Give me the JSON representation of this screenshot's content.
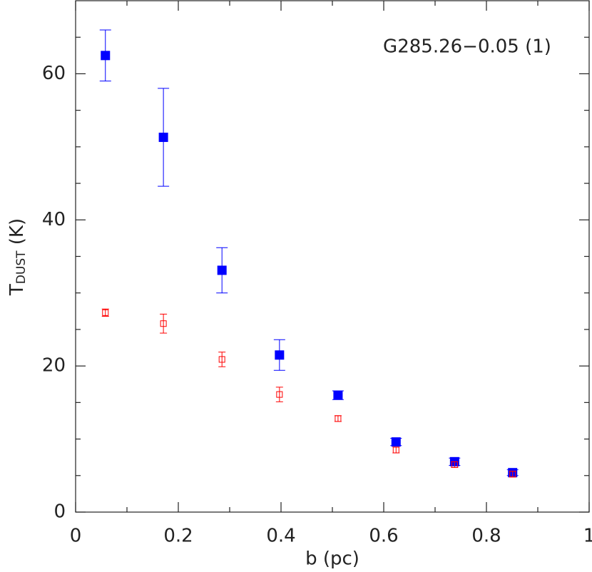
{
  "chart_data": {
    "type": "scatter",
    "xlabel": "b (pc)",
    "ylabel": "T",
    "ylabel_subscript": "DUST",
    "ylabel_suffix": "(K)",
    "annotation": "G285.26−0.05 (1)",
    "xlim": [
      0,
      1
    ],
    "xticks": [
      0,
      0.2,
      0.4,
      0.6,
      0.8,
      1
    ],
    "xminorticks": [
      0.1,
      0.3,
      0.5,
      0.7,
      0.9
    ],
    "ylim": [
      0,
      70
    ],
    "yticks": [
      0,
      20,
      40,
      60
    ],
    "yminorticks": [
      5,
      10,
      15,
      25,
      30,
      35,
      45,
      50,
      55,
      65
    ],
    "series": [
      {
        "color": "#0000ff",
        "marker": "filled",
        "x": [
          0.058,
          0.171,
          0.285,
          0.397,
          0.511,
          0.624,
          0.738,
          0.851
        ],
        "values": [
          62.5,
          51.3,
          33.1,
          21.5,
          16.0,
          9.6,
          6.9,
          5.4
        ],
        "errors": [
          3.5,
          6.7,
          3.1,
          2.1,
          0.6,
          0.5,
          0.5,
          0.4
        ]
      },
      {
        "color": "#ff0000",
        "marker": "open",
        "x": [
          0.058,
          0.171,
          0.285,
          0.397,
          0.511,
          0.624,
          0.738,
          0.851
        ],
        "values": [
          27.3,
          25.8,
          20.9,
          16.1,
          12.8,
          8.5,
          6.5,
          5.2
        ],
        "errors": [
          0.5,
          1.3,
          1.0,
          1.0,
          0.4,
          0.4,
          0.4,
          0.4
        ]
      }
    ]
  }
}
